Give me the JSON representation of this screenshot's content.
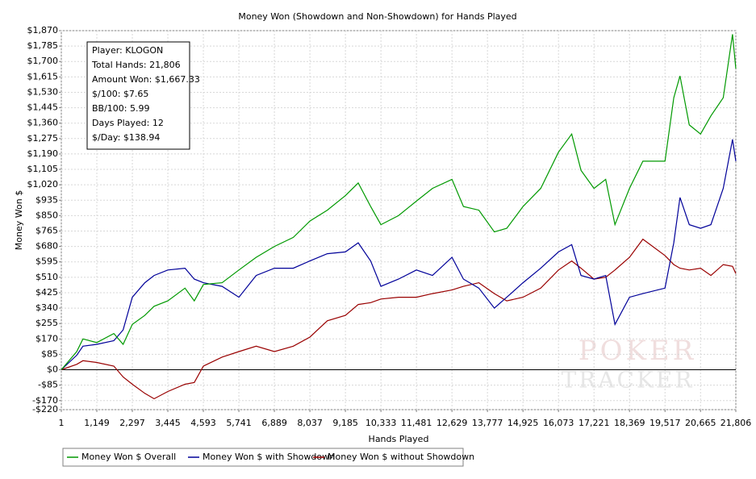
{
  "chart_data": {
    "type": "line",
    "title": "Money Won (Showdown and Non-Showdown) for Hands Played",
    "x_label": "Hands Played",
    "y_label": "Money Won $",
    "stats_box": [
      "Player: KLOGON",
      "Total Hands: 21,806",
      "Amount Won: $1,667.33",
      "$/100: $7.65",
      "BB/100: 5.99",
      "Days Played: 12",
      "$/Day: $138.94"
    ],
    "watermark": [
      "POKER",
      "TRACKER"
    ],
    "grid": true,
    "legend": "bottom",
    "x": [
      1,
      500,
      700,
      1149,
      1700,
      2000,
      2297,
      2700,
      3000,
      3445,
      4000,
      4300,
      4593,
      5200,
      5741,
      6300,
      6889,
      7500,
      8037,
      8600,
      9185,
      9600,
      10000,
      10333,
      10900,
      11481,
      12000,
      12629,
      13000,
      13500,
      14000,
      14400,
      14925,
      15500,
      16073,
      16500,
      16800,
      17221,
      17600,
      17900,
      18369,
      18800,
      19517,
      19800,
      20000,
      20300,
      20665,
      21000,
      21400,
      21700,
      21806
    ],
    "series": [
      {
        "name": "Money Won $ Overall",
        "color": "#009900",
        "values": [
          0,
          100,
          170,
          150,
          200,
          140,
          250,
          300,
          350,
          380,
          450,
          380,
          470,
          480,
          550,
          620,
          680,
          730,
          820,
          880,
          960,
          1030,
          900,
          800,
          850,
          930,
          1000,
          1050,
          900,
          880,
          760,
          780,
          900,
          1000,
          1200,
          1300,
          1100,
          1000,
          1050,
          800,
          1000,
          1150,
          1150,
          1500,
          1620,
          1350,
          1300,
          1400,
          1500,
          1850,
          1660
        ]
      },
      {
        "name": "Money Won $ with Showdown",
        "color": "#000099",
        "values": [
          0,
          80,
          130,
          140,
          160,
          220,
          400,
          480,
          520,
          550,
          560,
          500,
          480,
          460,
          400,
          520,
          560,
          560,
          600,
          640,
          650,
          700,
          600,
          460,
          500,
          550,
          520,
          620,
          500,
          450,
          340,
          400,
          480,
          560,
          650,
          690,
          520,
          500,
          520,
          250,
          400,
          420,
          450,
          700,
          950,
          800,
          780,
          800,
          1000,
          1270,
          1150
        ]
      },
      {
        "name": "Money Won $ without Showdown",
        "color": "#990000",
        "values": [
          0,
          30,
          50,
          40,
          20,
          -40,
          -80,
          -130,
          -160,
          -120,
          -80,
          -70,
          20,
          70,
          100,
          130,
          100,
          130,
          180,
          270,
          300,
          360,
          370,
          390,
          400,
          400,
          420,
          440,
          460,
          480,
          420,
          380,
          400,
          450,
          550,
          600,
          560,
          500,
          510,
          550,
          620,
          720,
          630,
          580,
          560,
          550,
          560,
          520,
          580,
          570,
          530
        ]
      }
    ],
    "xlim": [
      1,
      21806
    ],
    "xticks": [
      1,
      {
        "value": 1149,
        "label": "1,149"
      },
      {
        "value": 2297,
        "label": "2,297"
      },
      {
        "value": 3445,
        "label": "3,445"
      },
      {
        "value": 4593,
        "label": "4,593"
      },
      {
        "value": 5741,
        "label": "5,741"
      },
      {
        "value": 6889,
        "label": "6,889"
      },
      {
        "value": 8037,
        "label": "8,037"
      },
      {
        "value": 9185,
        "label": "9,185"
      },
      {
        "value": 10333,
        "label": "10,333"
      },
      {
        "value": 11481,
        "label": "11,481"
      },
      {
        "value": 12629,
        "label": "12,629"
      },
      {
        "value": 13777,
        "label": "13,777"
      },
      {
        "value": 14925,
        "label": "14,925"
      },
      {
        "value": 16073,
        "label": "16,073"
      },
      {
        "value": 17221,
        "label": "17,221"
      },
      {
        "value": 18369,
        "label": "18,369"
      },
      {
        "value": 19517,
        "label": "19,517"
      },
      {
        "value": 20665,
        "label": "20,665"
      },
      {
        "value": 21806,
        "label": "21,806"
      }
    ],
    "ylim": [
      -220,
      1870
    ],
    "yticks": [
      {
        "value": -220,
        "label": "-$220"
      },
      {
        "value": -170,
        "label": "-$170"
      },
      {
        "value": -85,
        "label": "-$85"
      },
      {
        "value": 0,
        "label": "$0"
      },
      {
        "value": 85,
        "label": "$85"
      },
      {
        "value": 170,
        "label": "$170"
      },
      {
        "value": 255,
        "label": "$255"
      },
      {
        "value": 340,
        "label": "$340"
      },
      {
        "value": 425,
        "label": "$425"
      },
      {
        "value": 510,
        "label": "$510"
      },
      {
        "value": 595,
        "label": "$595"
      },
      {
        "value": 680,
        "label": "$680"
      },
      {
        "value": 765,
        "label": "$765"
      },
      {
        "value": 850,
        "label": "$850"
      },
      {
        "value": 935,
        "label": "$935"
      },
      {
        "value": 1020,
        "label": "$1,020"
      },
      {
        "value": 1105,
        "label": "$1,105"
      },
      {
        "value": 1190,
        "label": "$1,190"
      },
      {
        "value": 1275,
        "label": "$1,275"
      },
      {
        "value": 1360,
        "label": "$1,360"
      },
      {
        "value": 1445,
        "label": "$1,445"
      },
      {
        "value": 1530,
        "label": "$1,530"
      },
      {
        "value": 1615,
        "label": "$1,615"
      },
      {
        "value": 1700,
        "label": "$1,700"
      },
      {
        "value": 1785,
        "label": "$1,785"
      },
      {
        "value": 1870,
        "label": "$1,870"
      }
    ]
  }
}
